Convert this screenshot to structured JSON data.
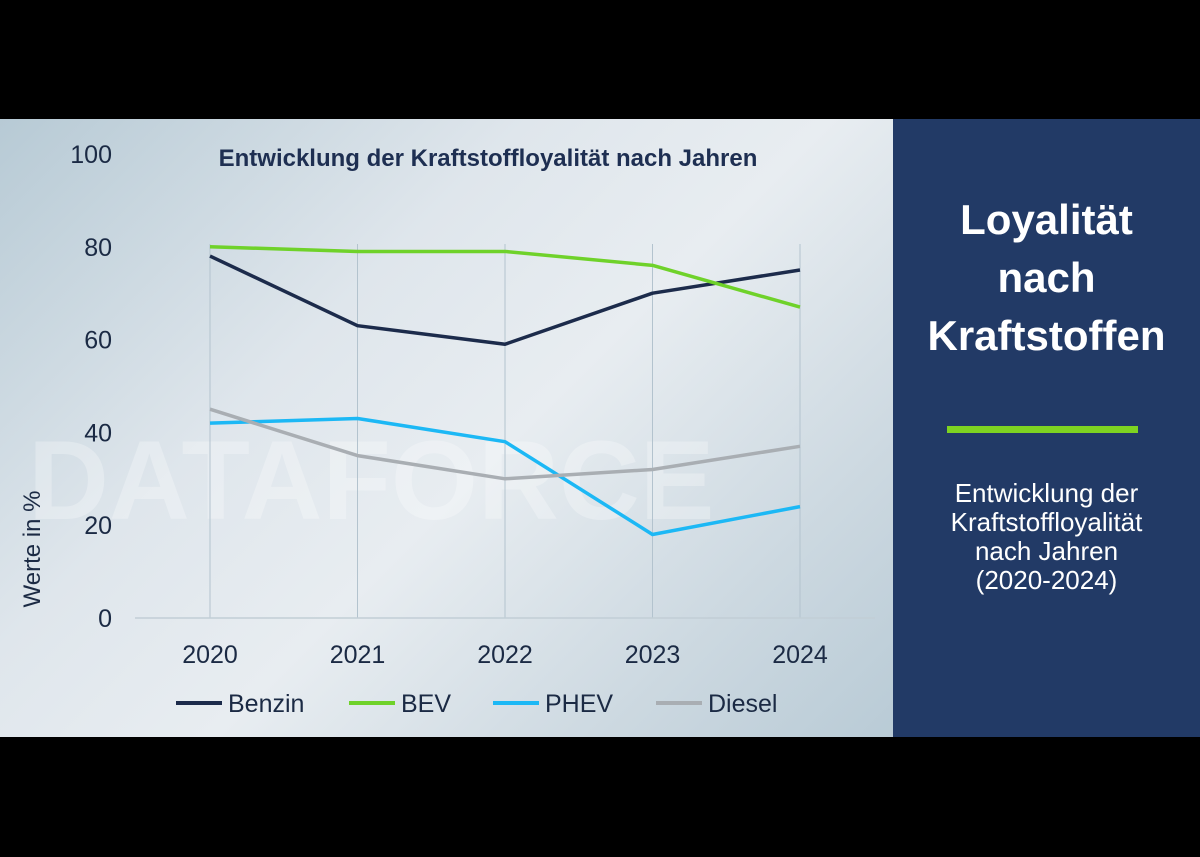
{
  "chart_data": {
    "type": "line",
    "title": "Entwicklung der Kraftstoffloyalität nach Jahren",
    "ylabel": "Werte in %",
    "xlabel": "",
    "categories": [
      "2020",
      "2021",
      "2022",
      "2023",
      "2024"
    ],
    "ylim": [
      0,
      100
    ],
    "yticks": [
      0,
      20,
      40,
      60,
      80,
      100
    ],
    "grid": "vertical",
    "legend": "bottom",
    "series": [
      {
        "name": "Benzin",
        "color": "#1c2b4b",
        "values": [
          78,
          63,
          59,
          70,
          75
        ]
      },
      {
        "name": "BEV",
        "color": "#6fd22a",
        "values": [
          80,
          79,
          79,
          76,
          67
        ]
      },
      {
        "name": "PHEV",
        "color": "#1cb8f5",
        "values": [
          42,
          43,
          38,
          18,
          24
        ]
      },
      {
        "name": "Diesel",
        "color": "#a9aeb3",
        "values": [
          45,
          35,
          30,
          32,
          37
        ]
      }
    ]
  },
  "watermark": "DATAFORCE",
  "side": {
    "title_lines": [
      "Loyalität",
      "nach",
      "Kraftstoffen"
    ],
    "subtitle_lines": [
      "Entwicklung der",
      "Kraftstoffloyalität",
      "nach Jahren",
      "(2020-2024)"
    ],
    "accent": "#7ed321",
    "background": "#223a66"
  }
}
